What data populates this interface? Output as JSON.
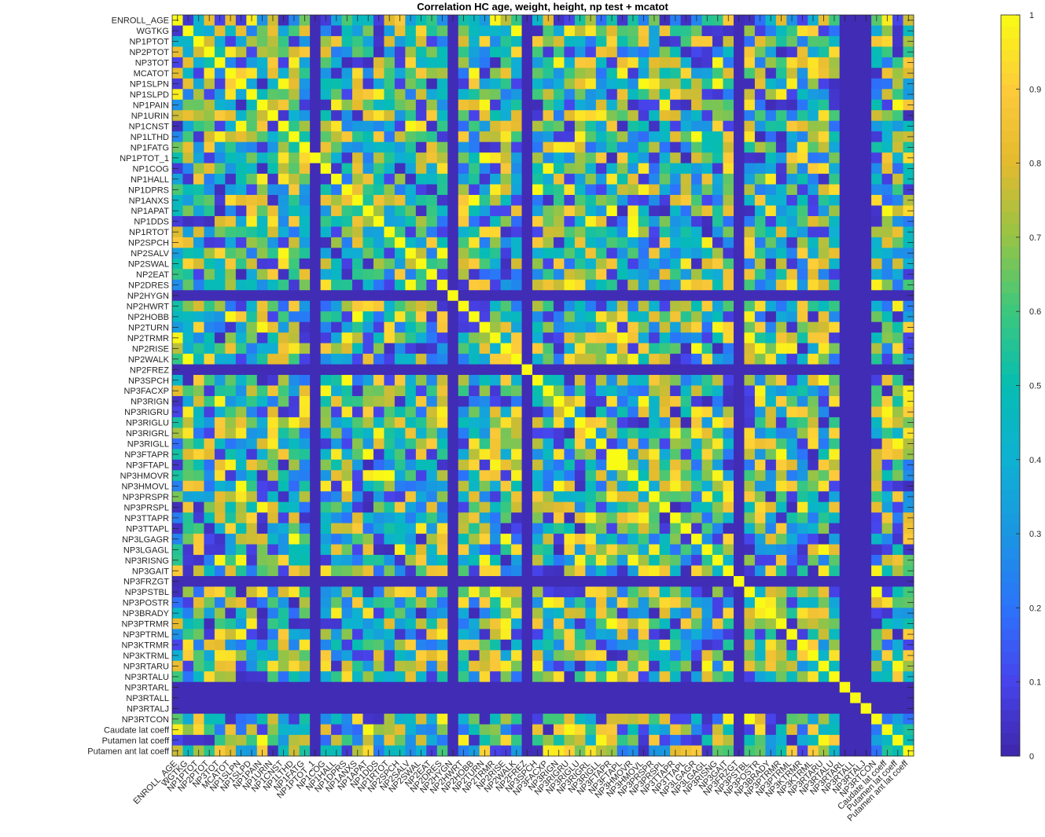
{
  "chart_data": {
    "type": "heatmap",
    "title": "Correlation HC age, weight, height,  np test + mcatot",
    "labels": [
      "ENROLL_AGE",
      "WGTKG",
      "NP1PTOT",
      "NP2PTOT",
      "NP3TOT",
      "MCATOT",
      "NP1SLPN",
      "NP1SLPD",
      "NP1PAIN",
      "NP1URIN",
      "NP1CNST",
      "NP1LTHD",
      "NP1FATG",
      "NP1PTOT_1",
      "NP1COG",
      "NP1HALL",
      "NP1DPRS",
      "NP1ANXS",
      "NP1APAT",
      "NP1DDS",
      "NP1RTOT",
      "NP2SPCH",
      "NP2SALV",
      "NP2SWAL",
      "NP2EAT",
      "NP2DRES",
      "NP2HYGN",
      "NP2HWRT",
      "NP2HOBB",
      "NP2TURN",
      "NP2TRMR",
      "NP2RISE",
      "NP2WALK",
      "NP2FREZ",
      "NP3SPCH",
      "NP3FACXP",
      "NP3RIGN",
      "NP3RIGRU",
      "NP3RIGLU",
      "NP3RIGRL",
      "NP3RIGLL",
      "NP3FTAPR",
      "NP3FTAPL",
      "NP3HMOVR",
      "NP3HMOVL",
      "NP3PRSPR",
      "NP3PRSPL",
      "NP3TTAPR",
      "NP3TTAPL",
      "NP3LGAGR",
      "NP3LGAGL",
      "NP3RISNG",
      "NP3GAIT",
      "NP3FRZGT",
      "NP3PSTBL",
      "NP3POSTR",
      "NP3BRADY",
      "NP3PTRMR",
      "NP3PTRML",
      "NP3KTRMR",
      "NP3KTRML",
      "NP3RTARU",
      "NP3RTALU",
      "NP3RTARL",
      "NP3RTALL",
      "NP3RTALJ",
      "NP3RTCON",
      "Caudate lat coeff",
      "Putamen lat coeff",
      "Putamen ant lat coeff"
    ],
    "colorbar": {
      "range": [
        0,
        1
      ],
      "ticks": [
        "0",
        "0.1",
        "0.2",
        "0.3",
        "0.4",
        "0.5",
        "0.6",
        "0.7",
        "0.8",
        "0.9",
        "1"
      ]
    },
    "colormap": "parula",
    "zero_rows_cols": [
      "NP2HYGN",
      "NP2FREZ",
      "NP3FRZGT",
      "NP3RTARL",
      "NP3RTALL",
      "NP3RTALJ"
    ],
    "zero_cols_only": [
      "NP1PTOT_1"
    ],
    "diagonal_value": 1,
    "values_note": ""
  }
}
